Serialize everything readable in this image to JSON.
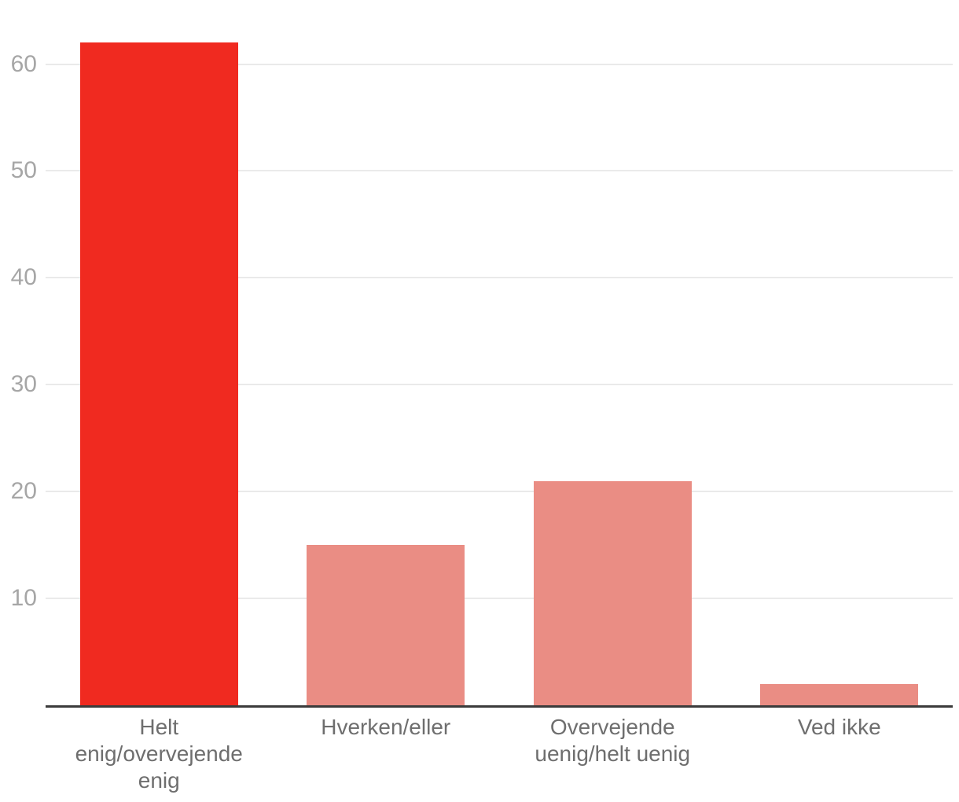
{
  "chart_data": {
    "type": "bar",
    "title": "",
    "xlabel": "",
    "ylabel": "",
    "categories": [
      "Helt enig/overvejende enig",
      "Hverken/eller",
      "Overvejende uenig/helt uenig",
      "Ved ikke"
    ],
    "category_lines": [
      [
        "Helt",
        "enig/overvejende",
        "enig"
      ],
      [
        "Hverken/eller"
      ],
      [
        "Overvejende",
        "uenig/helt uenig"
      ],
      [
        "Ved ikke"
      ]
    ],
    "category_slugs": [
      "helt-enig-overvejende-enig",
      "hverken-eller",
      "overvejende-uenig-helt-uenig",
      "ved-ikke"
    ],
    "values": [
      62,
      15,
      21,
      2
    ],
    "bar_colors": [
      "#f02a20",
      "#ea8d84",
      "#ea8d84",
      "#ea8d84"
    ],
    "ylim": [
      0,
      66
    ],
    "yticks": [
      10,
      20,
      30,
      40,
      50,
      60
    ],
    "grid": true,
    "legend": false,
    "colors": {
      "highlight_bar": "#f02a20",
      "default_bar": "#ea8d84",
      "gridline": "#eaeaea",
      "axis_line": "#3b3b3b",
      "ytick_text": "#a6a6a6",
      "xtick_text": "#6e6e6e",
      "background": "#ffffff"
    }
  }
}
